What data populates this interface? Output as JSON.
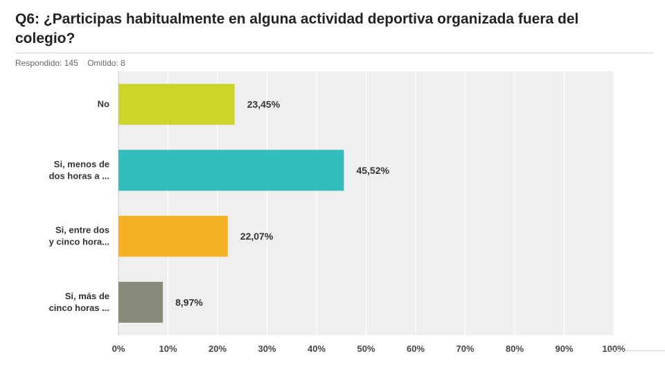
{
  "question": {
    "title": "Q6: ¿Participas habitualmente en alguna actividad deportiva organizada fuera del colegio?",
    "answered_label": "Respondido: 145",
    "skipped_label": "Omitido: 8"
  },
  "chart_data": {
    "type": "bar",
    "orientation": "horizontal",
    "categories": [
      [
        "No"
      ],
      [
        "Si, menos de",
        "dos horas a ..."
      ],
      [
        "Si, entre dos",
        "y cinco hora..."
      ],
      [
        "Si, más de",
        "cinco horas ..."
      ]
    ],
    "values": [
      23.45,
      45.52,
      22.07,
      8.97
    ],
    "value_labels": [
      "23,45%",
      "45,52%",
      "22,07%",
      "8,97%"
    ],
    "colors": [
      "#cdd52a",
      "#33bdbd",
      "#f6b023",
      "#8a8a7a"
    ],
    "xlim": [
      0,
      100
    ],
    "xticks": [
      "0%",
      "10%",
      "20%",
      "30%",
      "40%",
      "50%",
      "60%",
      "70%",
      "80%",
      "90%",
      "100%"
    ],
    "grid": true,
    "plot_background": "#efefef"
  }
}
